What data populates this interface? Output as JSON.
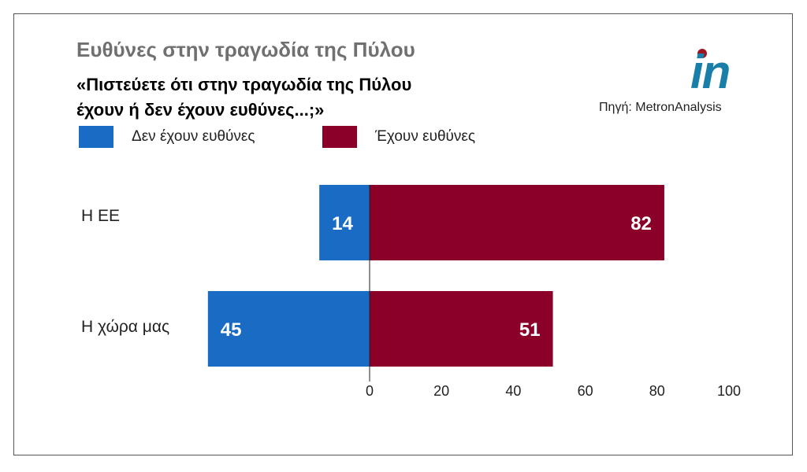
{
  "title": "Ευθύνες στην τραγωδία της Πύλου",
  "question_line1": "«Πιστεύετε ότι στην τραγωδία της Πύλου",
  "question_line2": "έχουν ή δεν έχουν ευθύνες...;»",
  "logo": "in",
  "source": "Πηγή: MetronAnalysis",
  "colors": {
    "no": "#1a6bc4",
    "yes": "#8b0029"
  },
  "chart_data": {
    "type": "bar",
    "orientation": "horizontal-diverging",
    "categories": [
      "Η ΕΕ",
      "Η χώρα μας"
    ],
    "series": [
      {
        "name": "Δεν έχουν ευθύνες",
        "values": [
          14,
          45
        ],
        "direction": "left"
      },
      {
        "name": "Έχουν ευθύνες",
        "values": [
          82,
          51
        ],
        "direction": "right"
      }
    ],
    "xlim": [
      0,
      100
    ],
    "xticks": [
      "0",
      "20",
      "40",
      "60",
      "80",
      "100"
    ],
    "legend": "top-left"
  }
}
